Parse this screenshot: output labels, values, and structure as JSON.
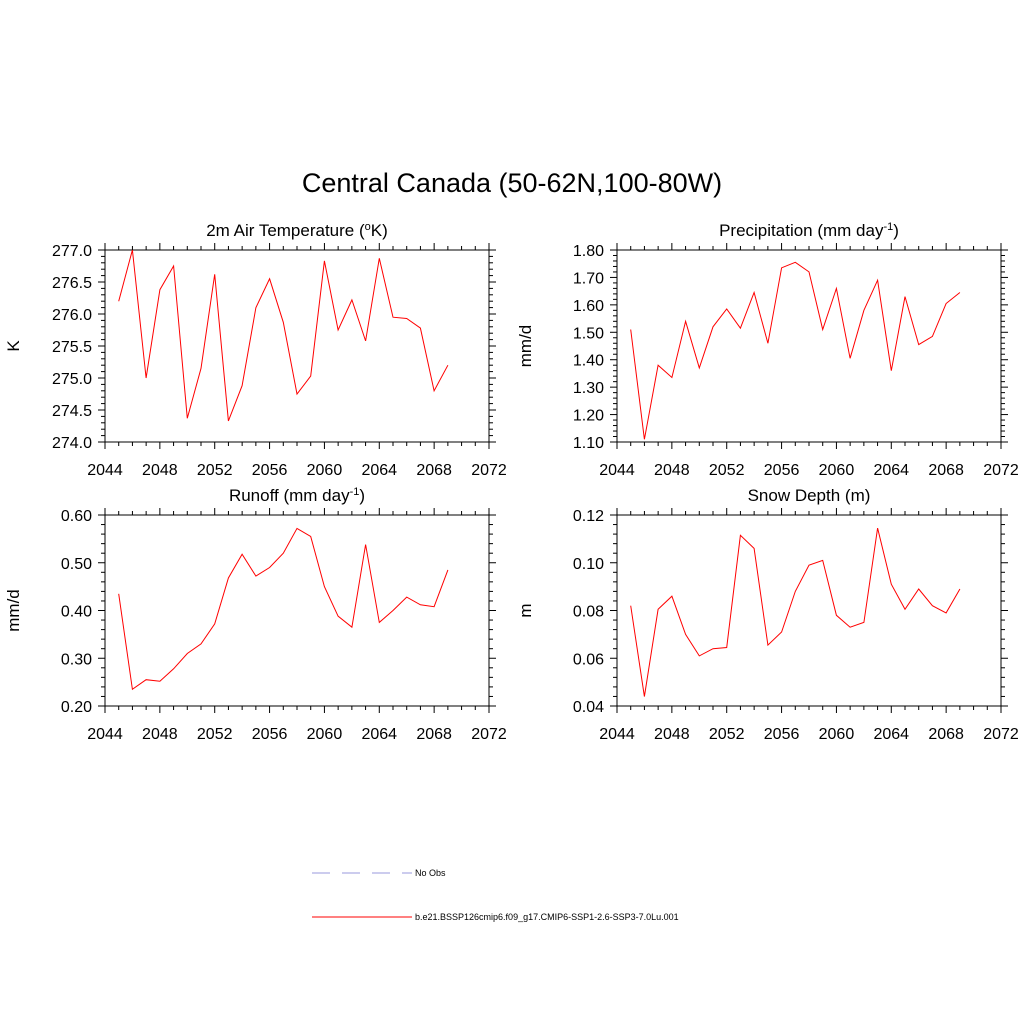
{
  "main_title": "Central Canada (50-62N,100-80W)",
  "colors": {
    "model_line": "#ff0000",
    "obs_line": "#9999dd",
    "axis": "#000000"
  },
  "legend": [
    {
      "label": "No Obs",
      "style": "dashed",
      "color": "#9999dd"
    },
    {
      "label": "b.e21.BSSP126cmip6.f09_g17.CMIP6-SSP1-2.6-SSP3-7.0Lu.001",
      "style": "solid",
      "color": "#ff0000"
    }
  ],
  "chart_data": [
    {
      "type": "line",
      "title": "2m Air Temperature (",
      "title_sup": "o",
      "title_after": "K)",
      "ylabel": "K",
      "xlim": [
        2044,
        2072
      ],
      "ylim": [
        274.0,
        277.0
      ],
      "x_ticks": [
        "2044",
        "2048",
        "2052",
        "2056",
        "2060",
        "2064",
        "2068",
        "2072"
      ],
      "y_ticks": [
        "274.0",
        "274.5",
        "275.0",
        "275.5",
        "276.0",
        "276.5",
        "277.0"
      ],
      "grid": false,
      "series": [
        {
          "x": [
            2045,
            2046,
            2047,
            2048,
            2049,
            2050,
            2051,
            2052,
            2053,
            2054,
            2055,
            2056,
            2057,
            2058,
            2059,
            2060,
            2061,
            2062,
            2063,
            2064,
            2065,
            2066,
            2067,
            2068,
            2069
          ],
          "y": [
            276.2,
            277.0,
            275.0,
            276.38,
            276.75,
            274.37,
            275.15,
            276.62,
            274.33,
            274.88,
            276.1,
            276.55,
            275.87,
            274.75,
            275.03,
            276.83,
            275.75,
            276.22,
            275.58,
            276.87,
            275.95,
            275.93,
            275.78,
            274.8,
            275.2
          ]
        }
      ]
    },
    {
      "type": "line",
      "title": "Precipitation (mm day",
      "title_sup": "-1",
      "title_after": ")",
      "ylabel": "mm/d",
      "xlim": [
        2044,
        2072
      ],
      "ylim": [
        1.1,
        1.8
      ],
      "x_ticks": [
        "2044",
        "2048",
        "2052",
        "2056",
        "2060",
        "2064",
        "2068",
        "2072"
      ],
      "y_ticks": [
        "1.10",
        "1.20",
        "1.30",
        "1.40",
        "1.50",
        "1.60",
        "1.70",
        "1.80"
      ],
      "grid": false,
      "series": [
        {
          "x": [
            2045,
            2046,
            2047,
            2048,
            2049,
            2050,
            2051,
            2052,
            2053,
            2054,
            2055,
            2056,
            2057,
            2058,
            2059,
            2060,
            2061,
            2062,
            2063,
            2064,
            2065,
            2066,
            2067,
            2068,
            2069
          ],
          "y": [
            1.51,
            1.11,
            1.38,
            1.335,
            1.54,
            1.37,
            1.52,
            1.585,
            1.515,
            1.645,
            1.46,
            1.735,
            1.755,
            1.72,
            1.51,
            1.66,
            1.405,
            1.58,
            1.69,
            1.36,
            1.63,
            1.455,
            1.485,
            1.605,
            1.645
          ]
        }
      ]
    },
    {
      "type": "line",
      "title": "Runoff (mm day",
      "title_sup": "-1",
      "title_after": ")",
      "ylabel": "mm/d",
      "xlim": [
        2044,
        2072
      ],
      "ylim": [
        0.2,
        0.6
      ],
      "x_ticks": [
        "2044",
        "2048",
        "2052",
        "2056",
        "2060",
        "2064",
        "2068",
        "2072"
      ],
      "y_ticks": [
        "0.20",
        "0.30",
        "0.40",
        "0.50",
        "0.60"
      ],
      "grid": false,
      "series": [
        {
          "x": [
            2045,
            2046,
            2047,
            2048,
            2049,
            2050,
            2051,
            2052,
            2053,
            2054,
            2055,
            2056,
            2057,
            2058,
            2059,
            2060,
            2061,
            2062,
            2063,
            2064,
            2065,
            2066,
            2067,
            2068,
            2069
          ],
          "y": [
            0.435,
            0.235,
            0.255,
            0.252,
            0.278,
            0.31,
            0.33,
            0.372,
            0.468,
            0.518,
            0.472,
            0.49,
            0.52,
            0.572,
            0.555,
            0.45,
            0.388,
            0.365,
            0.538,
            0.375,
            0.4,
            0.428,
            0.412,
            0.408,
            0.485
          ]
        }
      ]
    },
    {
      "type": "line",
      "title": "Snow Depth (m)",
      "title_sup": "",
      "title_after": "",
      "ylabel": "m",
      "xlim": [
        2044,
        2072
      ],
      "ylim": [
        0.04,
        0.12
      ],
      "x_ticks": [
        "2044",
        "2048",
        "2052",
        "2056",
        "2060",
        "2064",
        "2068",
        "2072"
      ],
      "y_ticks": [
        "0.04",
        "0.06",
        "0.08",
        "0.10",
        "0.12"
      ],
      "grid": false,
      "series": [
        {
          "x": [
            2045,
            2046,
            2047,
            2048,
            2049,
            2050,
            2051,
            2052,
            2053,
            2054,
            2055,
            2056,
            2057,
            2058,
            2059,
            2060,
            2061,
            2062,
            2063,
            2064,
            2065,
            2066,
            2067,
            2068,
            2069
          ],
          "y": [
            0.082,
            0.044,
            0.0805,
            0.086,
            0.07,
            0.061,
            0.064,
            0.0645,
            0.1115,
            0.106,
            0.0655,
            0.071,
            0.088,
            0.099,
            0.101,
            0.078,
            0.073,
            0.075,
            0.1145,
            0.091,
            0.0805,
            0.089,
            0.082,
            0.079,
            0.089
          ]
        }
      ]
    }
  ]
}
